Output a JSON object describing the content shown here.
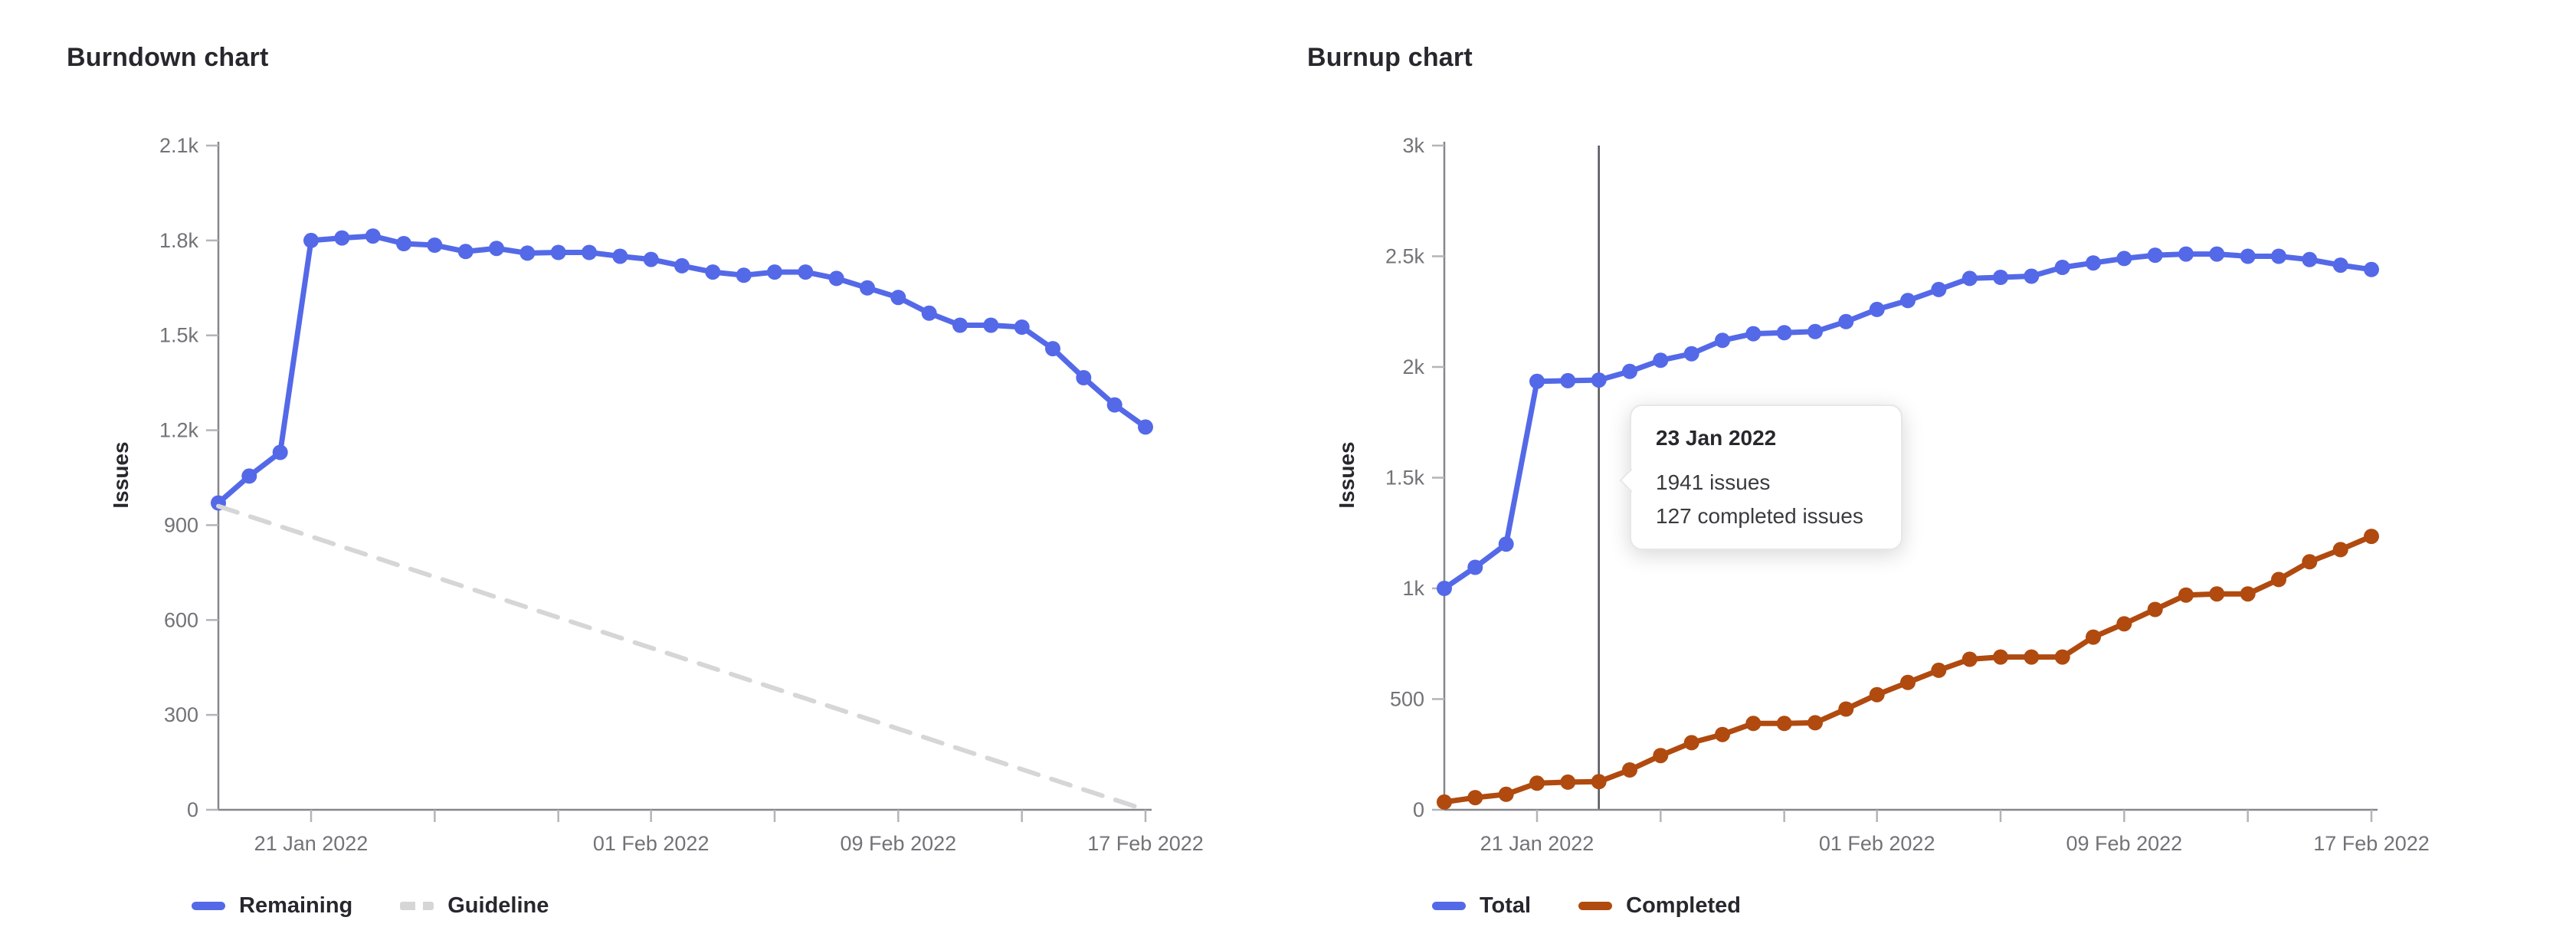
{
  "page": {
    "background": "#ffffff",
    "axis_color": "#86868b",
    "tick_color": "#b4b4b9",
    "tick_label_color": "#737278",
    "text_color": "#28272d",
    "hover_line_color": "#54545c"
  },
  "charts": [
    {
      "title": "Burndown chart",
      "ylabel": "Issues",
      "legend": [
        {
          "label": "Remaining",
          "color": "#5469e8",
          "dashed": false
        },
        {
          "label": "Guideline",
          "color": "#d6d6d6",
          "dashed": true
        }
      ],
      "chart_data": {
        "type": "line",
        "title": "Burndown chart",
        "xlabel": "",
        "ylabel": "Issues",
        "ylim": [
          0,
          2100
        ],
        "grid": false,
        "legend_position": "bottom-left",
        "x": [
          "2022-01-18",
          "2022-01-19",
          "2022-01-20",
          "2022-01-21",
          "2022-01-22",
          "2022-01-23",
          "2022-01-24",
          "2022-01-25",
          "2022-01-26",
          "2022-01-27",
          "2022-01-28",
          "2022-01-29",
          "2022-01-30",
          "2022-01-31",
          "2022-02-01",
          "2022-02-02",
          "2022-02-03",
          "2022-02-04",
          "2022-02-05",
          "2022-02-06",
          "2022-02-07",
          "2022-02-08",
          "2022-02-09",
          "2022-02-10",
          "2022-02-11",
          "2022-02-12",
          "2022-02-13",
          "2022-02-14",
          "2022-02-15",
          "2022-02-16",
          "2022-02-17"
        ],
        "x_ticks": [
          {
            "label": "21 Jan 2022",
            "index": 3
          },
          {
            "label": "01 Feb 2022",
            "index": 14
          },
          {
            "label": "09 Feb 2022",
            "index": 22
          },
          {
            "label": "17 Feb 2022",
            "index": 30
          }
        ],
        "y_ticks": [
          {
            "label": "0",
            "value": 0
          },
          {
            "label": "300",
            "value": 300
          },
          {
            "label": "600",
            "value": 600
          },
          {
            "label": "900",
            "value": 900
          },
          {
            "label": "1.2k",
            "value": 1200
          },
          {
            "label": "1.5k",
            "value": 1500
          },
          {
            "label": "1.8k",
            "value": 1800
          },
          {
            "label": "2.1k",
            "value": 2100
          }
        ],
        "series": [
          {
            "name": "Remaining",
            "color": "#5469e8",
            "style": "solid",
            "points": true,
            "values": [
              970,
              1055,
              1130,
              1800,
              1808,
              1814,
              1790,
              1785,
              1765,
              1775,
              1760,
              1762,
              1762,
              1750,
              1740,
              1720,
              1700,
              1690,
              1700,
              1700,
              1680,
              1650,
              1620,
              1570,
              1532,
              1532,
              1526,
              1458,
              1366,
              1280,
              1210
            ]
          },
          {
            "name": "Guideline",
            "color": "#d6d6d6",
            "style": "dashed",
            "points": false,
            "values": [
              960,
              928,
              896,
              864,
              832,
              800,
              768,
              736,
              704,
              672,
              640,
              608,
              576,
              544,
              512,
              480,
              448,
              416,
              384,
              352,
              320,
              288,
              256,
              224,
              192,
              160,
              128,
              96,
              64,
              32,
              0
            ]
          }
        ]
      }
    },
    {
      "title": "Burnup chart",
      "ylabel": "Issues",
      "legend": [
        {
          "label": "Total",
          "color": "#5469e8",
          "dashed": false
        },
        {
          "label": "Completed",
          "color": "#b04a0f",
          "dashed": false
        }
      ],
      "tooltip": {
        "title": "23 Jan 2022",
        "lines": [
          "1941 issues",
          "127 completed issues"
        ],
        "day_index": 5
      },
      "chart_data": {
        "type": "line",
        "title": "Burnup chart",
        "xlabel": "",
        "ylabel": "Issues",
        "ylim": [
          0,
          3000
        ],
        "grid": false,
        "legend_position": "bottom-left",
        "x": [
          "2022-01-18",
          "2022-01-19",
          "2022-01-20",
          "2022-01-21",
          "2022-01-22",
          "2022-01-23",
          "2022-01-24",
          "2022-01-25",
          "2022-01-26",
          "2022-01-27",
          "2022-01-28",
          "2022-01-29",
          "2022-01-30",
          "2022-01-31",
          "2022-02-01",
          "2022-02-02",
          "2022-02-03",
          "2022-02-04",
          "2022-02-05",
          "2022-02-06",
          "2022-02-07",
          "2022-02-08",
          "2022-02-09",
          "2022-02-10",
          "2022-02-11",
          "2022-02-12",
          "2022-02-13",
          "2022-02-14",
          "2022-02-15",
          "2022-02-16",
          "2022-02-17"
        ],
        "x_ticks": [
          {
            "label": "21 Jan 2022",
            "index": 3
          },
          {
            "label": "01 Feb 2022",
            "index": 14
          },
          {
            "label": "09 Feb 2022",
            "index": 22
          },
          {
            "label": "17 Feb 2022",
            "index": 30
          }
        ],
        "y_ticks": [
          {
            "label": "0",
            "value": 0
          },
          {
            "label": "500",
            "value": 500
          },
          {
            "label": "1k",
            "value": 1000
          },
          {
            "label": "1.5k",
            "value": 1500
          },
          {
            "label": "2k",
            "value": 2000
          },
          {
            "label": "2.5k",
            "value": 2500
          },
          {
            "label": "3k",
            "value": 3000
          }
        ],
        "series": [
          {
            "name": "Total",
            "color": "#5469e8",
            "style": "solid",
            "points": true,
            "values": [
              1000,
              1095,
              1200,
              1935,
              1938,
              1941,
              1980,
              2030,
              2060,
              2120,
              2150,
              2155,
              2160,
              2205,
              2260,
              2300,
              2350,
              2400,
              2405,
              2410,
              2450,
              2470,
              2490,
              2505,
              2510,
              2510,
              2500,
              2500,
              2485,
              2460,
              2440
            ]
          },
          {
            "name": "Completed",
            "color": "#b04a0f",
            "style": "solid",
            "points": true,
            "values": [
              35,
              55,
              70,
              120,
              125,
              127,
              180,
              245,
              303,
              340,
              390,
              390,
              393,
              455,
              520,
              575,
              630,
              680,
              690,
              690,
              690,
              780,
              840,
              905,
              970,
              975,
              975,
              1040,
              1120,
              1175,
              1235
            ]
          }
        ]
      }
    }
  ]
}
